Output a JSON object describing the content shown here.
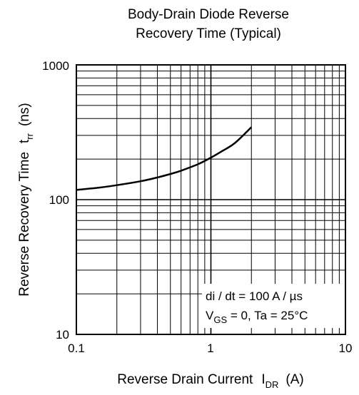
{
  "chart_data": {
    "type": "line",
    "title_line1": "Body-Drain Diode Reverse",
    "title_line2": "Recovery Time (Typical)",
    "xlabel": {
      "main": "Reverse Drain Current",
      "sym": "I",
      "sub": "DR",
      "unit": "(A)"
    },
    "ylabel": {
      "main": "Reverse Recovery Time",
      "sym": "t",
      "sub": "rr",
      "unit": "(ns)"
    },
    "xscale": "log",
    "yscale": "log",
    "xlim": [
      0.1,
      10
    ],
    "ylim": [
      10,
      1000
    ],
    "xticks": [
      "0.1",
      "1",
      "10"
    ],
    "yticks": [
      "10",
      "100",
      "1000"
    ],
    "grid": true,
    "annotations": {
      "line1": "di / dt = 100 A / µs",
      "line2_pre": "V",
      "line2_sub": "GS",
      "line2_post": " = 0, Ta = 25°C"
    },
    "series": [
      {
        "x": [
          0.1,
          0.15,
          0.2,
          0.3,
          0.4,
          0.5,
          0.6,
          0.8,
          1.0,
          1.2,
          1.5,
          2.0
        ],
        "y": [
          118,
          123,
          128,
          137,
          146,
          155,
          164,
          183,
          205,
          228,
          262,
          345
        ]
      }
    ]
  }
}
